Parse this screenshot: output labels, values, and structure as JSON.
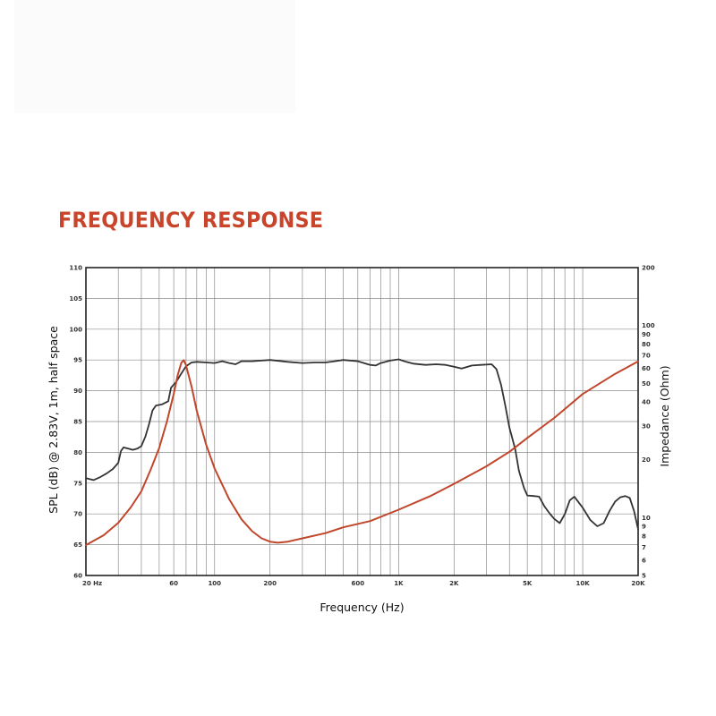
{
  "heading": "FREQUENCY RESPONSE",
  "colors": {
    "heading": "#c8442a",
    "spl": "#333333",
    "impedance": "#c0462c",
    "grid": "#8c8c8c"
  },
  "chart_data": {
    "type": "line",
    "xlabel": "Frequency (Hz)",
    "ylabel": "SPL (dB) @ 2.83V, 1m, half space",
    "y2label": "Impedance (Ohm)",
    "x_scale": "log",
    "xlim": [
      20,
      20000
    ],
    "ylim": [
      60,
      110
    ],
    "y2lim": [
      5,
      200
    ],
    "y2_scale": "log",
    "grid": true,
    "x_tick_labels": [
      {
        "value": 20,
        "label": "20 Hz"
      },
      {
        "value": 60,
        "label": "60"
      },
      {
        "value": 100,
        "label": "100"
      },
      {
        "value": 200,
        "label": "200"
      },
      {
        "value": 600,
        "label": "600"
      },
      {
        "value": 1000,
        "label": "1K"
      },
      {
        "value": 2000,
        "label": "2K"
      },
      {
        "value": 5000,
        "label": "5K"
      },
      {
        "value": 10000,
        "label": "10K"
      },
      {
        "value": 20000,
        "label": "20K"
      }
    ],
    "y_tick_labels": [
      {
        "value": 60,
        "label": "60"
      },
      {
        "value": 65,
        "label": "65"
      },
      {
        "value": 70,
        "label": "70"
      },
      {
        "value": 75,
        "label": "75"
      },
      {
        "value": 80,
        "label": "80"
      },
      {
        "value": 85,
        "label": "85"
      },
      {
        "value": 90,
        "label": "90"
      },
      {
        "value": 95,
        "label": "95"
      },
      {
        "value": 100,
        "label": "100"
      },
      {
        "value": 105,
        "label": "105"
      },
      {
        "value": 110,
        "label": "110"
      }
    ],
    "y2_tick_labels": [
      {
        "value": 200,
        "label": "200"
      },
      {
        "value": 100,
        "label": "100"
      },
      {
        "value": 90,
        "label": "90"
      },
      {
        "value": 80,
        "label": "80"
      },
      {
        "value": 70,
        "label": "70"
      },
      {
        "value": 60,
        "label": "60"
      },
      {
        "value": 50,
        "label": "50"
      },
      {
        "value": 40,
        "label": "40"
      },
      {
        "value": 30,
        "label": "30"
      },
      {
        "value": 20,
        "label": "20"
      },
      {
        "value": 10,
        "label": "10"
      },
      {
        "value": 9,
        "label": "9"
      },
      {
        "value": 8,
        "label": "8"
      },
      {
        "value": 7,
        "label": "7"
      },
      {
        "value": 6,
        "label": "6"
      },
      {
        "value": 5,
        "label": "5"
      }
    ],
    "series": [
      {
        "axis": "left",
        "points": [
          [
            20,
            75.8
          ],
          [
            22,
            75.5
          ],
          [
            24,
            76
          ],
          [
            26,
            76.6
          ],
          [
            28,
            77.3
          ],
          [
            30,
            78.3
          ],
          [
            31,
            80.2
          ],
          [
            32,
            80.8
          ],
          [
            34,
            80.6
          ],
          [
            36,
            80.4
          ],
          [
            38,
            80.6
          ],
          [
            40,
            81
          ],
          [
            42,
            82.5
          ],
          [
            44,
            84.5
          ],
          [
            46,
            86.8
          ],
          [
            48,
            87.6
          ],
          [
            52,
            87.8
          ],
          [
            56,
            88.3
          ],
          [
            58,
            90.5
          ],
          [
            62,
            91.5
          ],
          [
            65,
            92.5
          ],
          [
            70,
            94
          ],
          [
            75,
            94.6
          ],
          [
            80,
            94.7
          ],
          [
            90,
            94.6
          ],
          [
            100,
            94.5
          ],
          [
            110,
            94.8
          ],
          [
            120,
            94.5
          ],
          [
            130,
            94.3
          ],
          [
            140,
            94.8
          ],
          [
            160,
            94.8
          ],
          [
            180,
            94.9
          ],
          [
            200,
            95
          ],
          [
            250,
            94.7
          ],
          [
            300,
            94.5
          ],
          [
            350,
            94.6
          ],
          [
            400,
            94.6
          ],
          [
            450,
            94.8
          ],
          [
            500,
            95
          ],
          [
            600,
            94.8
          ],
          [
            700,
            94.2
          ],
          [
            750,
            94.1
          ],
          [
            800,
            94.5
          ],
          [
            900,
            94.9
          ],
          [
            1000,
            95.1
          ],
          [
            1100,
            94.7
          ],
          [
            1200,
            94.4
          ],
          [
            1400,
            94.2
          ],
          [
            1600,
            94.3
          ],
          [
            1800,
            94.2
          ],
          [
            2000,
            93.9
          ],
          [
            2200,
            93.6
          ],
          [
            2500,
            94.1
          ],
          [
            2800,
            94.2
          ],
          [
            3200,
            94.3
          ],
          [
            3400,
            93.5
          ],
          [
            3600,
            91
          ],
          [
            3800,
            87.5
          ],
          [
            4000,
            84
          ],
          [
            4300,
            80.5
          ],
          [
            4500,
            77
          ],
          [
            4800,
            74.2
          ],
          [
            5000,
            73
          ],
          [
            5400,
            72.9
          ],
          [
            5800,
            72.8
          ],
          [
            6200,
            71.2
          ],
          [
            6600,
            70.1
          ],
          [
            7000,
            69.2
          ],
          [
            7500,
            68.5
          ],
          [
            8000,
            70
          ],
          [
            8500,
            72.2
          ],
          [
            9000,
            72.8
          ],
          [
            10000,
            71
          ],
          [
            11000,
            69
          ],
          [
            12000,
            68
          ],
          [
            13000,
            68.5
          ],
          [
            14000,
            70.5
          ],
          [
            15000,
            72
          ],
          [
            16000,
            72.7
          ],
          [
            17000,
            72.9
          ],
          [
            18000,
            72.6
          ],
          [
            19000,
            70.5
          ],
          [
            20000,
            67.5
          ]
        ]
      },
      {
        "axis": "right",
        "points": [
          [
            20,
            7.2
          ],
          [
            25,
            8.1
          ],
          [
            30,
            9.4
          ],
          [
            35,
            11.3
          ],
          [
            40,
            13.7
          ],
          [
            45,
            17.8
          ],
          [
            50,
            23
          ],
          [
            55,
            31.5
          ],
          [
            60,
            44
          ],
          [
            63,
            55
          ],
          [
            66,
            64
          ],
          [
            68,
            66
          ],
          [
            70,
            62
          ],
          [
            75,
            48
          ],
          [
            80,
            36
          ],
          [
            90,
            24
          ],
          [
            100,
            18
          ],
          [
            120,
            12.5
          ],
          [
            140,
            9.8
          ],
          [
            160,
            8.5
          ],
          [
            180,
            7.8
          ],
          [
            200,
            7.5
          ],
          [
            220,
            7.4
          ],
          [
            250,
            7.5
          ],
          [
            300,
            7.8
          ],
          [
            400,
            8.3
          ],
          [
            500,
            8.9
          ],
          [
            700,
            9.6
          ],
          [
            1000,
            11
          ],
          [
            1500,
            13
          ],
          [
            2000,
            15
          ],
          [
            3000,
            18.5
          ],
          [
            4000,
            22
          ],
          [
            5000,
            26
          ],
          [
            7000,
            33
          ],
          [
            10000,
            44
          ],
          [
            15000,
            56
          ],
          [
            20000,
            65
          ]
        ]
      }
    ]
  }
}
